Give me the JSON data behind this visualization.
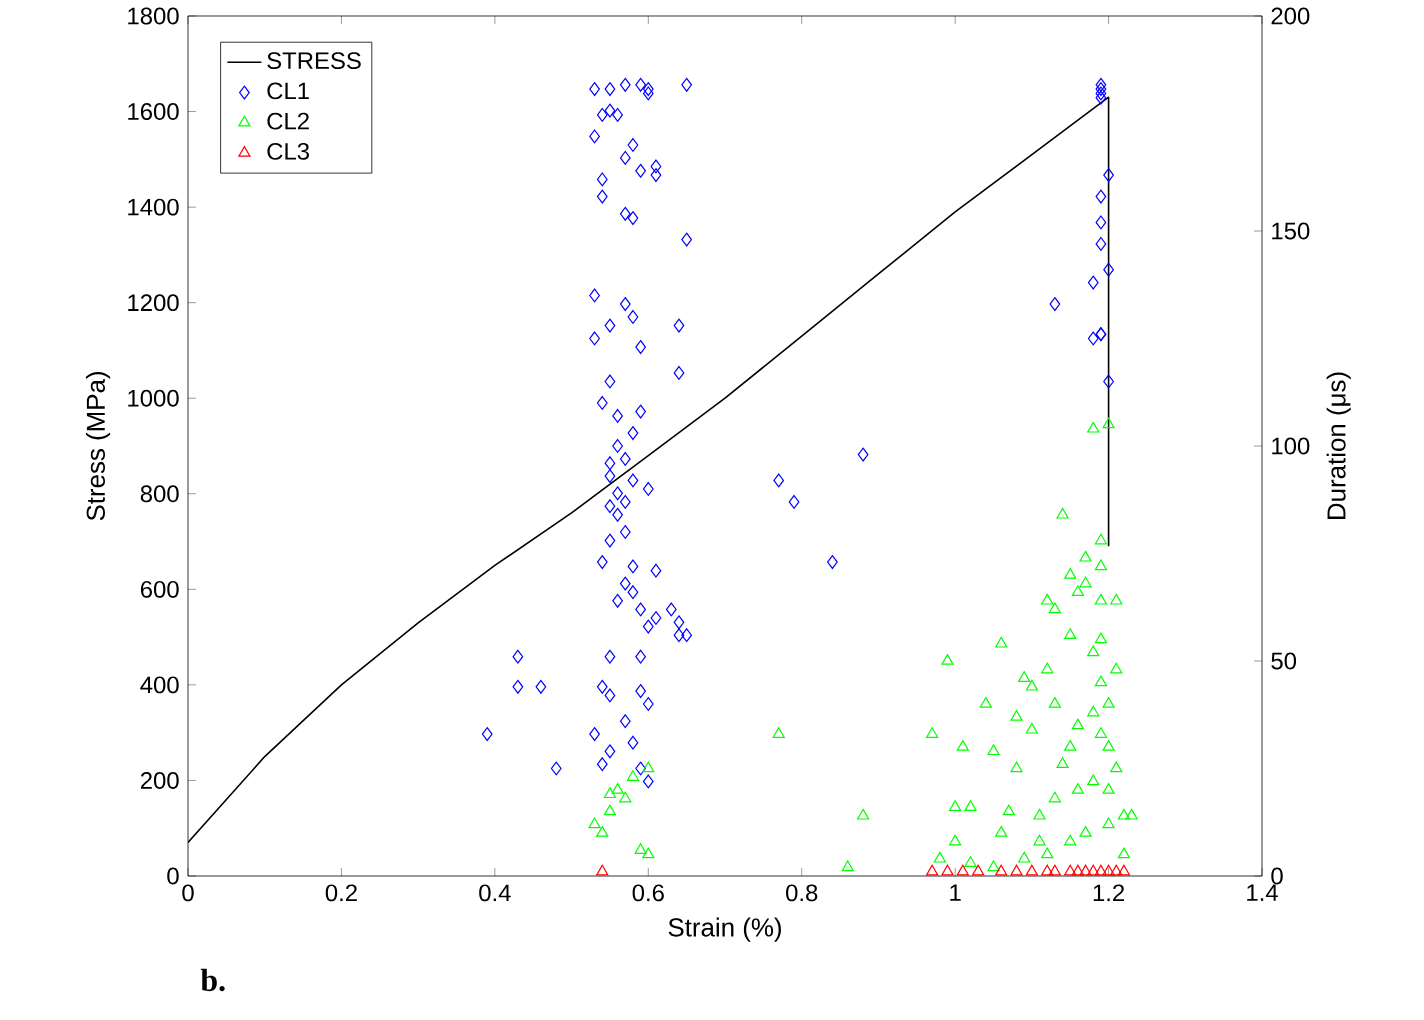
{
  "chart_data": {
    "type": "scatter",
    "xlabel": "Strain (%)",
    "ylabel": "Stress (MPa)",
    "y2label": "Duration (μs)",
    "xlim": [
      0,
      1.4
    ],
    "xticks": [
      0,
      0.2,
      0.4,
      0.6,
      0.8,
      1,
      1.2,
      1.4
    ],
    "ylim": [
      0,
      1800
    ],
    "yticks": [
      0,
      200,
      400,
      600,
      800,
      1000,
      1200,
      1400,
      1600,
      1800
    ],
    "y2lim": [
      0,
      200
    ],
    "y2ticks": [
      0,
      50,
      100,
      150,
      200
    ],
    "legend": "top left",
    "grid": false,
    "annotations": [
      "b."
    ],
    "series": [
      {
        "name": "STRESS",
        "type": "line",
        "color": "#000000",
        "marker": "none",
        "x": [
          0,
          0.1,
          0.2,
          0.3,
          0.4,
          0.5,
          0.6,
          0.7,
          0.8,
          0.9,
          1.0,
          1.1,
          1.2,
          1.2
        ],
        "values": [
          70,
          250,
          400,
          530,
          650,
          760,
          880,
          1000,
          1130,
          1260,
          1390,
          1510,
          1630,
          690
        ]
      },
      {
        "name": "CL1",
        "axis": "y2",
        "color": "#0000ff",
        "marker": "diamond",
        "x": [
          0.53,
          0.55,
          0.57,
          0.59,
          0.6,
          0.6,
          0.65,
          0.54,
          0.55,
          0.56,
          0.53,
          0.54,
          0.58,
          0.57,
          0.59,
          0.57,
          0.58,
          0.61,
          0.61,
          0.65,
          0.54,
          0.53,
          0.55,
          0.53,
          0.58,
          0.57,
          0.59,
          0.55,
          0.56,
          0.54,
          0.58,
          0.59,
          0.56,
          0.57,
          0.55,
          0.64,
          0.64,
          0.55,
          0.56,
          0.58,
          0.57,
          0.55,
          0.6,
          0.56,
          0.57,
          0.55,
          0.54,
          0.58,
          0.57,
          0.58,
          0.61,
          0.56,
          0.59,
          0.61,
          0.63,
          0.64,
          0.65,
          0.6,
          0.55,
          0.59,
          0.54,
          0.55,
          0.57,
          0.59,
          0.6,
          0.53,
          0.55,
          0.54,
          0.59,
          0.6,
          0.58,
          0.43,
          0.43,
          0.46,
          0.48,
          0.39,
          0.77,
          0.79,
          0.84,
          0.88,
          0.64,
          1.19,
          1.19,
          1.19,
          1.19,
          1.2,
          1.19,
          1.19,
          1.19,
          1.18,
          1.19,
          1.19,
          1.18,
          1.2,
          1.13,
          1.2
        ],
        "values": [
          183,
          183,
          184,
          184,
          183,
          182,
          184,
          177,
          178,
          177,
          172,
          162,
          170,
          167,
          164,
          154,
          153,
          165,
          163,
          148,
          158,
          135,
          128,
          125,
          130,
          133,
          123,
          115,
          107,
          110,
          103,
          108,
          100,
          97,
          96,
          128,
          117,
          93,
          89,
          92,
          87,
          86,
          90,
          84,
          80,
          78,
          73,
          72,
          68,
          66,
          71,
          64,
          62,
          60,
          62,
          59,
          56,
          58,
          51,
          51,
          44,
          42,
          36,
          43,
          40,
          33,
          29,
          26,
          25,
          22,
          31,
          51,
          44,
          44,
          25,
          33,
          92,
          87,
          73,
          98,
          56,
          184,
          183,
          182,
          181,
          163,
          158,
          152,
          147,
          138,
          126,
          126,
          125,
          115,
          133,
          141
        ]
      },
      {
        "name": "CL2",
        "axis": "y2",
        "color": "#00ff00",
        "marker": "triangle",
        "x": [
          0.54,
          0.55,
          0.55,
          0.57,
          0.56,
          0.6,
          0.58,
          0.53,
          0.59,
          0.6,
          0.77,
          0.86,
          0.88,
          0.99,
          0.97,
          1.0,
          1.01,
          1.02,
          1.04,
          1.05,
          1.06,
          1.08,
          1.08,
          1.09,
          1.1,
          1.1,
          1.11,
          1.12,
          1.12,
          1.13,
          1.13,
          1.14,
          1.15,
          1.15,
          1.15,
          1.16,
          1.16,
          1.17,
          1.17,
          1.18,
          1.18,
          1.18,
          1.19,
          1.19,
          1.19,
          1.19,
          1.19,
          1.2,
          1.2,
          1.2,
          1.21,
          1.21,
          1.21,
          1.22,
          1.23,
          1.02,
          1.05,
          1.12,
          1.15,
          1.17,
          1.2,
          1.18,
          1.16,
          1.14,
          1.13,
          1.11,
          1.09,
          1.06,
          1.07,
          1.19,
          1.2,
          1.22,
          0.98,
          1.0
        ],
        "values": [
          10,
          15,
          19,
          18,
          20,
          25,
          23,
          12,
          6,
          5,
          33,
          2,
          14,
          50,
          33,
          16,
          30,
          16,
          40,
          29,
          54,
          37,
          25,
          46,
          44,
          34,
          14,
          48,
          64,
          62,
          40,
          84,
          70,
          56,
          30,
          66,
          20,
          68,
          74,
          52,
          38,
          104,
          78,
          72,
          64,
          55,
          45,
          105,
          30,
          20,
          64,
          48,
          25,
          14,
          14,
          3,
          2,
          5,
          8,
          10,
          12,
          22,
          35,
          26,
          18,
          8,
          4,
          10,
          15,
          33,
          40,
          5,
          4,
          8
        ]
      },
      {
        "name": "CL3",
        "axis": "y2",
        "color": "#ff0000",
        "marker": "triangle",
        "x": [
          0.54,
          0.97,
          0.99,
          1.01,
          1.03,
          1.06,
          1.08,
          1.1,
          1.12,
          1.13,
          1.15,
          1.16,
          1.17,
          1.18,
          1.19,
          1.2,
          1.21,
          1.22
        ],
        "values": [
          1,
          1,
          1,
          1,
          1,
          1,
          1,
          1,
          1,
          1,
          1,
          1,
          1,
          1,
          1,
          1,
          1,
          1
        ]
      }
    ]
  }
}
